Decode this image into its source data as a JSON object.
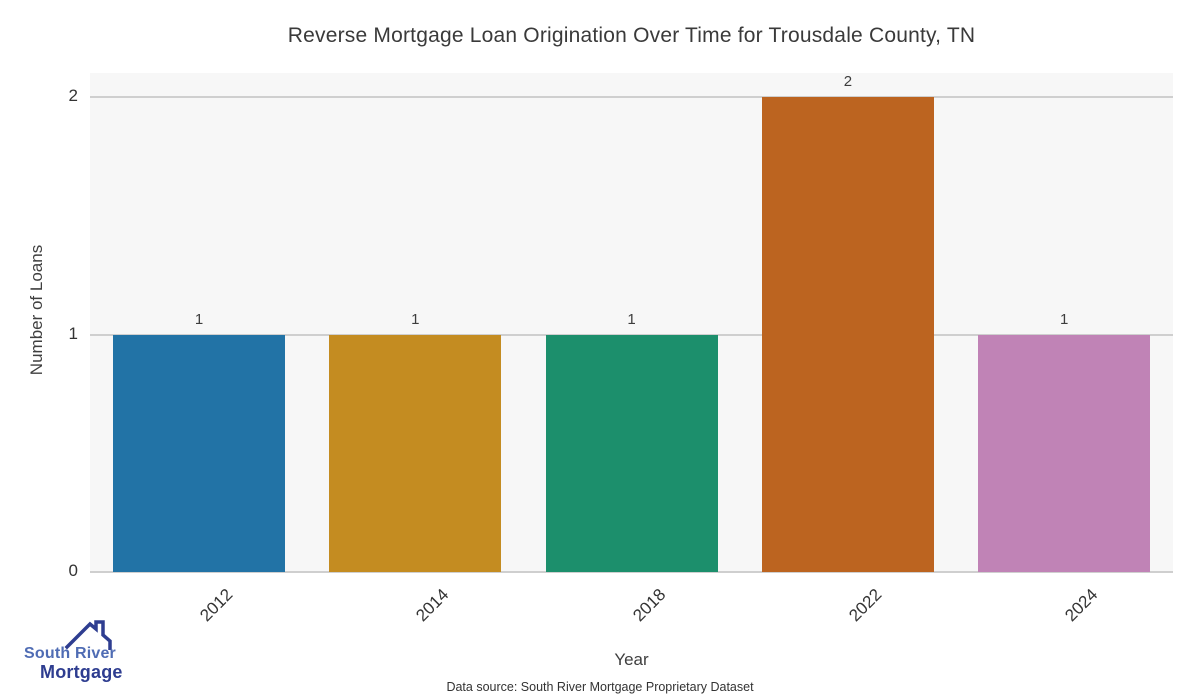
{
  "title": "Reverse Mortgage Loan Origination Over Time for Trousdale County, TN",
  "chart_data": {
    "type": "bar",
    "title": "Reverse Mortgage Loan Origination Over Time for Trousdale County, TN",
    "categories": [
      "2012",
      "2014",
      "2018",
      "2022",
      "2024"
    ],
    "values": [
      1,
      1,
      1,
      2,
      1
    ],
    "bar_labels": [
      "1",
      "1",
      "1",
      "2",
      "1"
    ],
    "bar_colors": [
      "#2273a6",
      "#c48c21",
      "#1c8f6c",
      "#bc6420",
      "#c083b6"
    ],
    "xlabel": "Year",
    "ylabel": "Number of Loans",
    "yticks": [
      0,
      1,
      2
    ],
    "ylim": [
      0,
      2.1
    ],
    "grid": true,
    "legend_position": "none",
    "plot_bg": "#f7f7f7",
    "grid_color": "#cfcfcf"
  },
  "footer": {
    "source_text": "Data source: South River Mortgage Proprietary Dataset"
  },
  "logo": {
    "line1": "South River",
    "line2": "Mortgage",
    "line1_color": "#4f6cb4",
    "line2_color": "#2e3d90",
    "roof_color": "#2e3d90"
  }
}
